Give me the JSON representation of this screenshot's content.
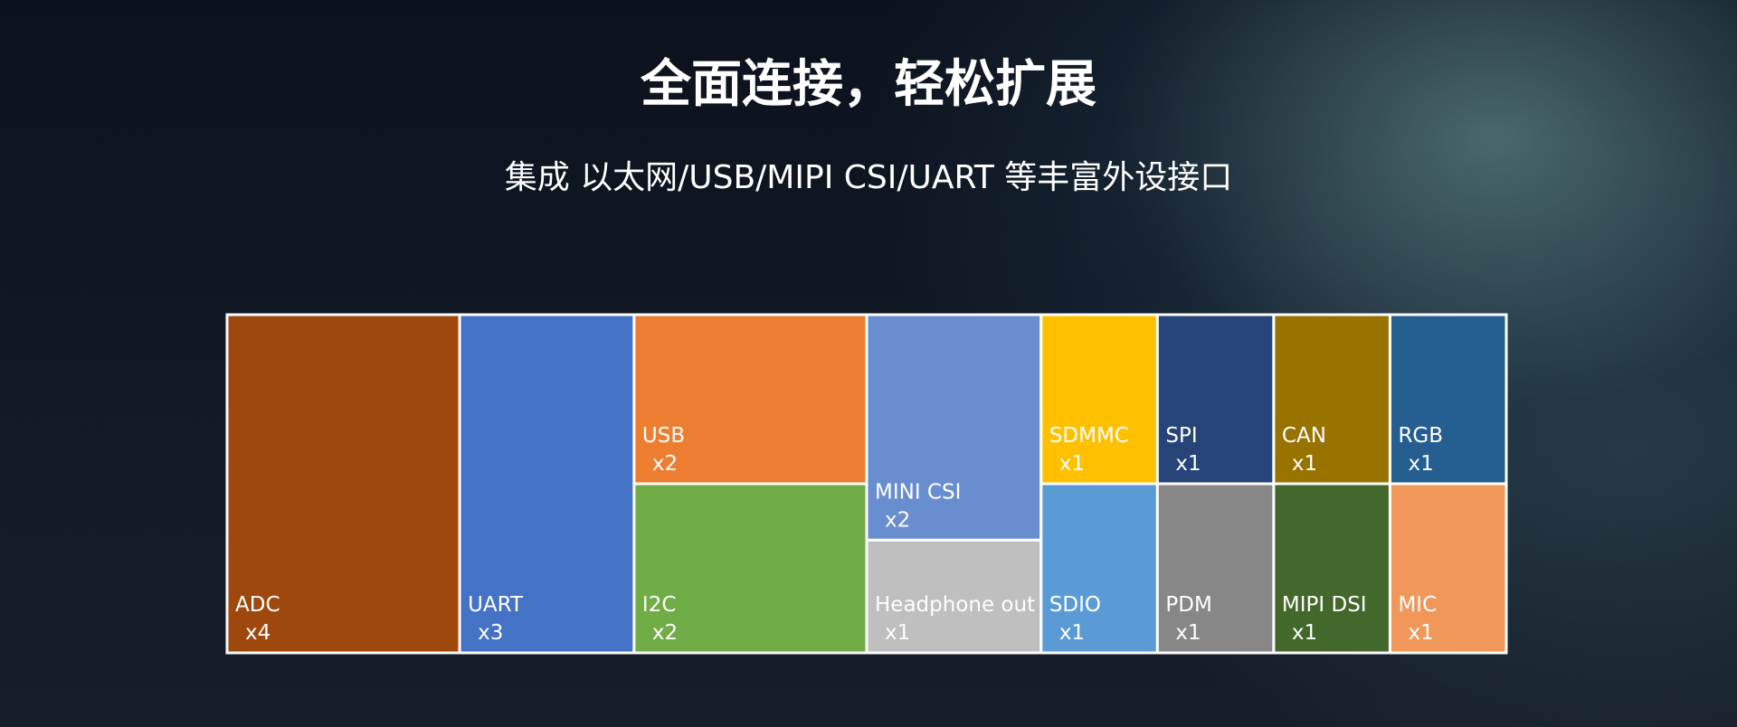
{
  "chart_data": {
    "type": "treemap",
    "title": "全面连接，轻松扩展",
    "subtitle": "集成 以太网/USB/MIPI CSI/UART 等丰富外设接口",
    "categories": [
      "ADC",
      "UART",
      "USB",
      "I2C",
      "MINI CSI",
      "Headphone out",
      "SDMMC",
      "SDIO",
      "SPI",
      "PDM",
      "CAN",
      "MIPI DSI",
      "RGB",
      "MIC"
    ],
    "values": [
      4,
      3,
      2,
      2,
      2,
      1,
      1,
      1,
      1,
      1,
      1,
      1,
      1,
      1
    ],
    "value_labels": [
      "x4",
      "x3",
      "x2",
      "x2",
      "x2",
      "x1",
      "x1",
      "x1",
      "x1",
      "x1",
      "x1",
      "x1",
      "x1",
      "x1"
    ],
    "colors": [
      "#9e480e",
      "#4472c4",
      "#ed7d31",
      "#70ad47",
      "#698ed0",
      "#bfbfbf",
      "#ffc000",
      "#5b9bd5",
      "#264478",
      "#878787",
      "#997300",
      "#43682b",
      "#255e91",
      "#f1975a"
    ]
  }
}
